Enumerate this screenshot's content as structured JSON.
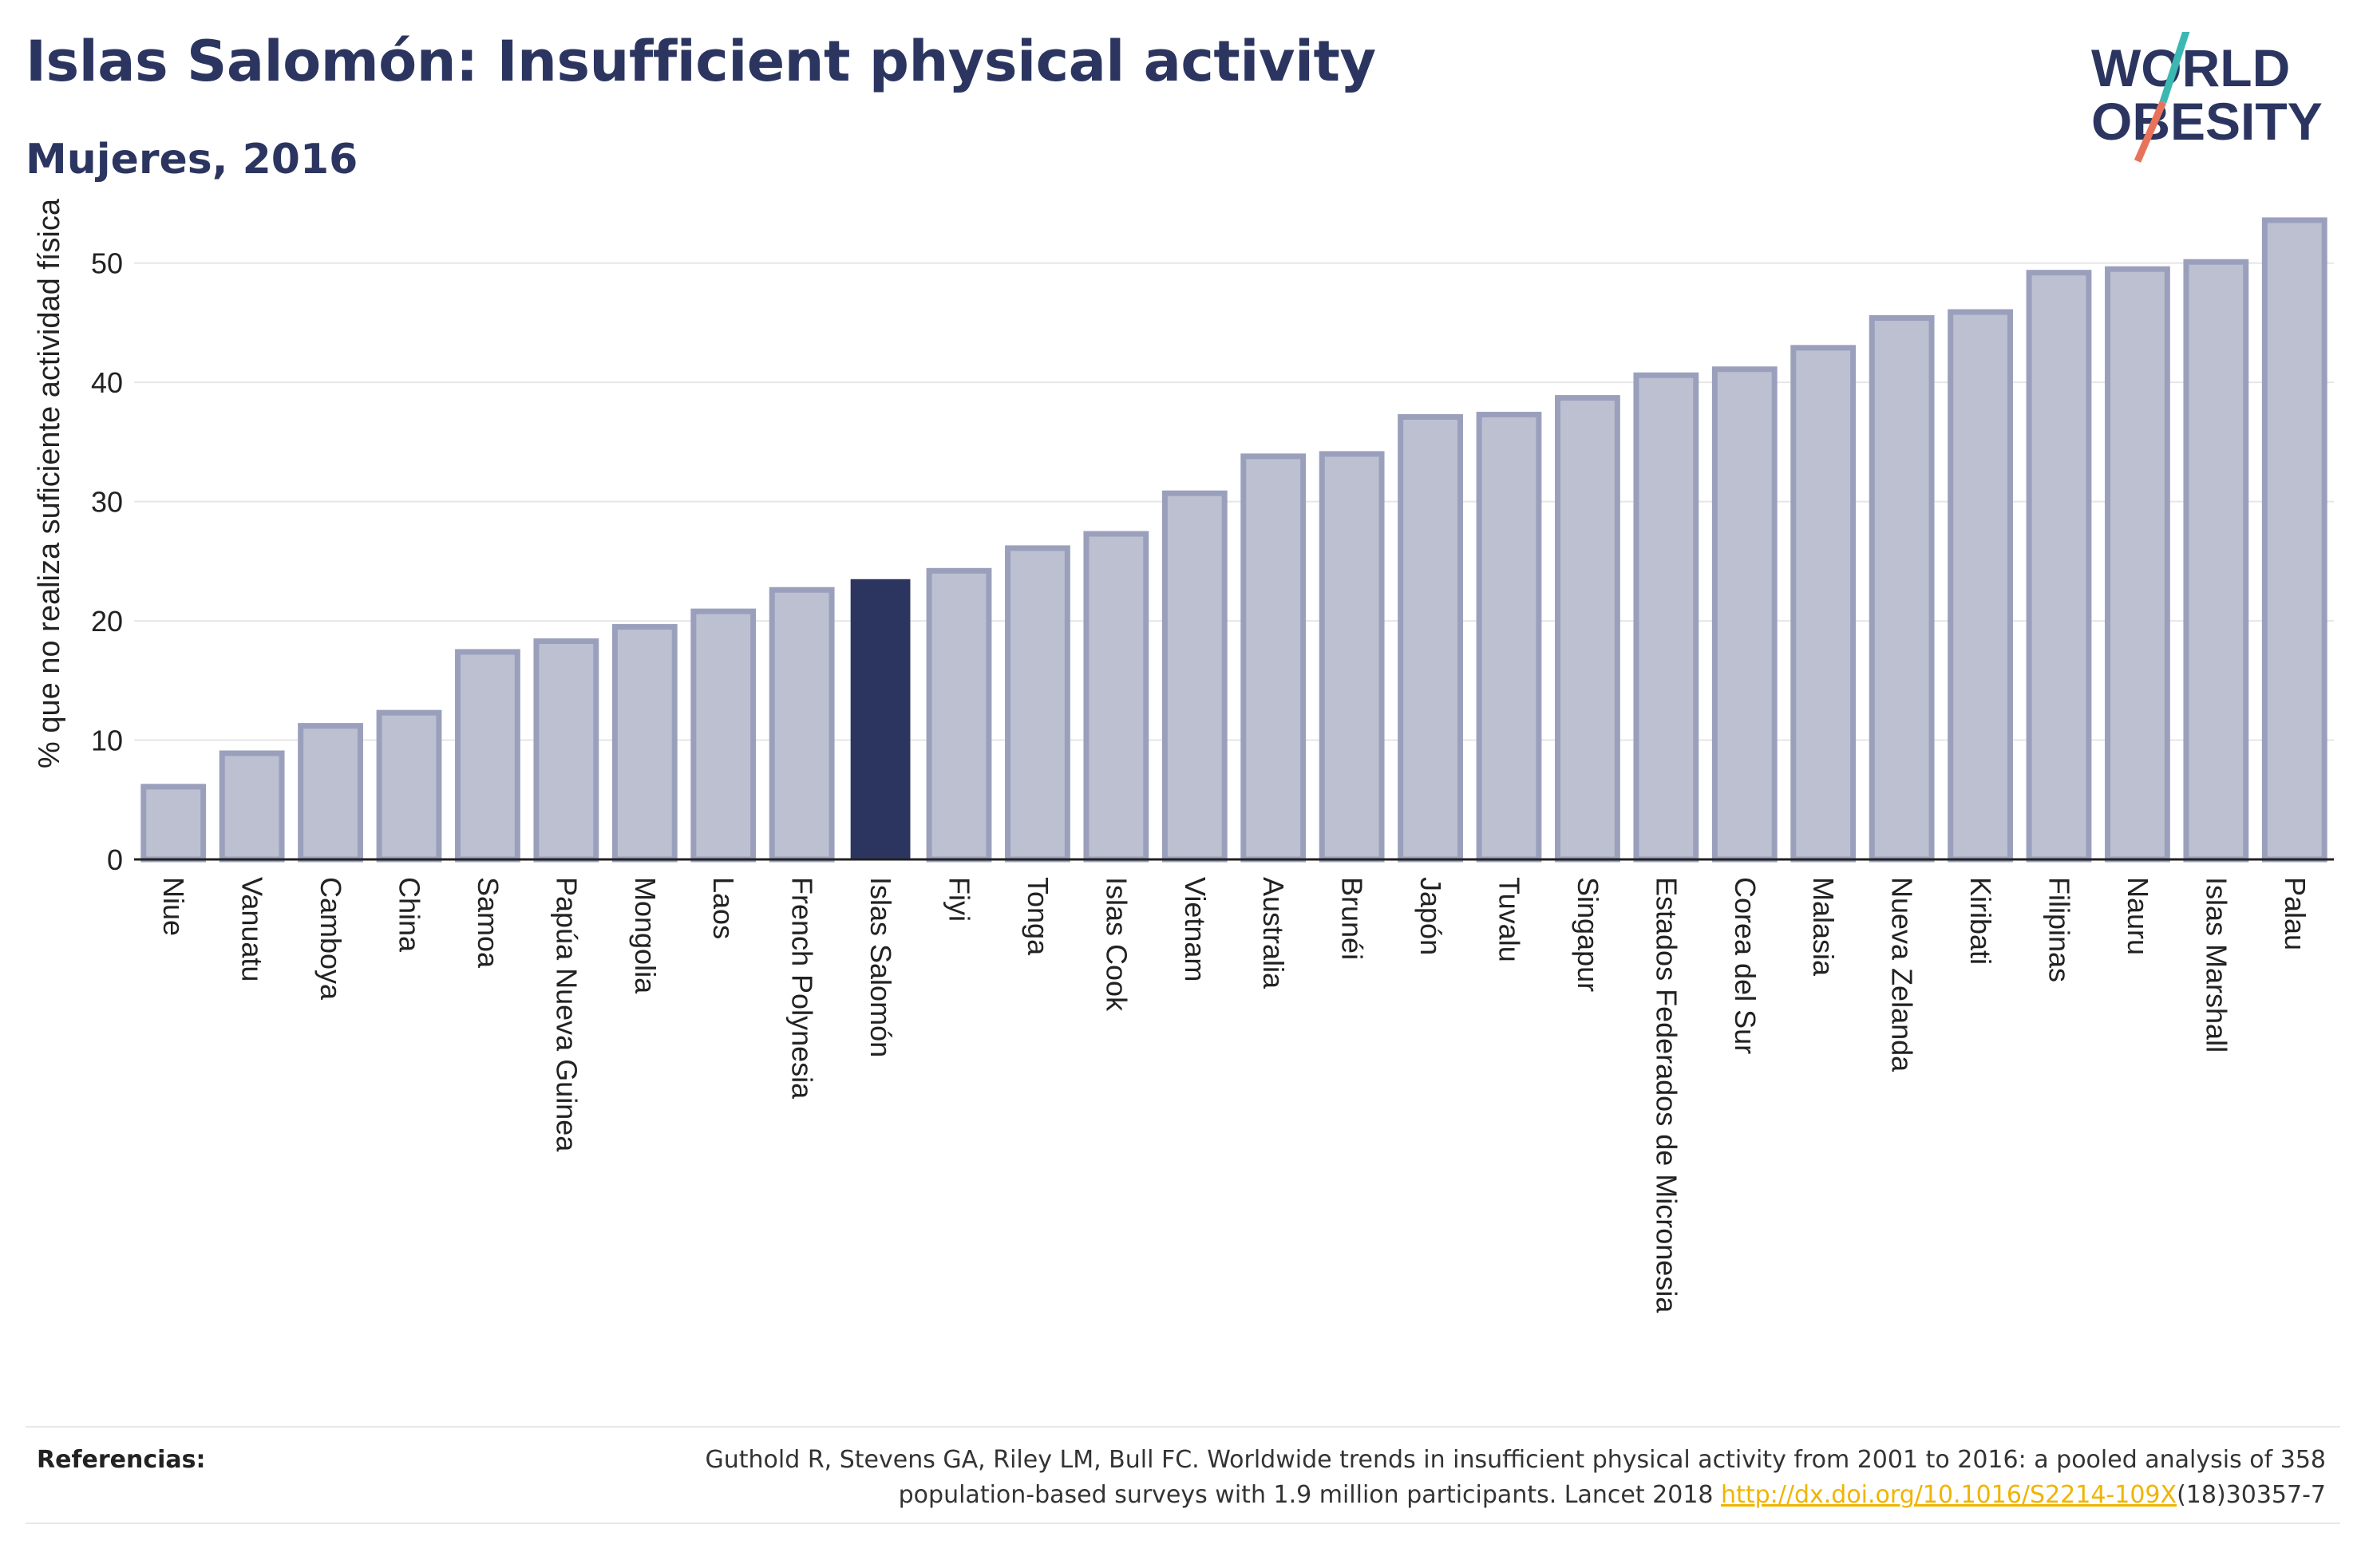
{
  "header": {
    "title": "Islas Salomón: Insufficient physical activity",
    "subtitle": "Mujeres, 2016"
  },
  "logo": {
    "line1": "WORLD",
    "line2": "OBESITY",
    "colors": {
      "text": "#2b3560",
      "slash_top": "#3cb8b2",
      "slash_bottom": "#e8735a"
    }
  },
  "colors": {
    "bar": "#bcc0d0",
    "bar_border": "#9aa0bc",
    "highlight": "#2b3560",
    "axis": "#222222",
    "grid": "#e6e6e6"
  },
  "chart_data": {
    "type": "bar",
    "title": "Islas Salomón: Insufficient physical activity",
    "subtitle": "Mujeres, 2016",
    "ylabel": "% que no realiza suficiente actividad física",
    "xlabel": "",
    "ylim": [
      0,
      55
    ],
    "yticks": [
      0,
      10,
      20,
      30,
      40,
      50
    ],
    "grid": true,
    "highlight": "Islas Salomón",
    "categories": [
      "Niue",
      "Vanuatu",
      "Camboya",
      "China",
      "Samoa",
      "Papúa Nueva Guinea",
      "Mongolia",
      "Laos",
      "French Polynesia",
      "Islas Salomón",
      "Fiyi",
      "Tonga",
      "Islas Cook",
      "Vietnam",
      "Australia",
      "Brunéi",
      "Japón",
      "Tuvalu",
      "Singapur",
      "Estados Federados de Micronesia",
      "Corea del Sur",
      "Malasia",
      "Nueva Zelanda",
      "Kiribati",
      "Filipinas",
      "Nauru",
      "Islas Marshall",
      "Palau"
    ],
    "values": [
      6.1,
      8.9,
      11.2,
      12.3,
      17.4,
      18.3,
      19.5,
      20.8,
      22.6,
      23.5,
      24.2,
      26.1,
      27.3,
      30.7,
      33.8,
      34.0,
      37.1,
      37.3,
      38.7,
      40.6,
      41.1,
      42.9,
      45.4,
      45.9,
      49.2,
      49.5,
      50.1,
      53.6
    ]
  },
  "footer": {
    "references_label": "Referencias:",
    "reference_line1": "Guthold R, Stevens GA, Riley LM, Bull FC. Worldwide trends in insufficient physical activity from 2001 to 2016: a pooled analysis of 358",
    "reference_line2_pre": "population-based surveys with 1.9 million participants. Lancet 2018 ",
    "reference_link": "http://dx.doi.org/10.1016/S2214-109X",
    "reference_line2_post": "(18)30357-7"
  }
}
